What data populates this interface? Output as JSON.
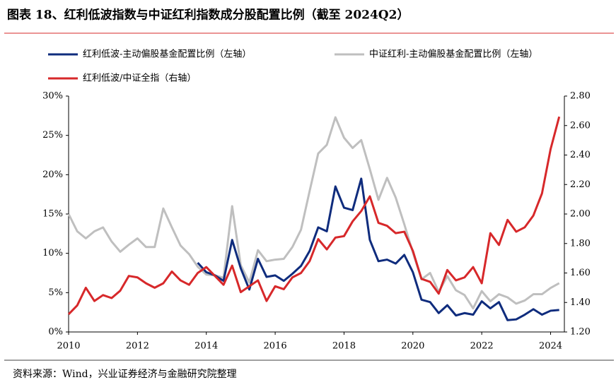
{
  "chart_data": {
    "type": "line",
    "title": "图表 18、红利低波指数与中证红利指数成分股配置比例（截至 2024Q2）",
    "source": "资料来源：Wind，兴业证券经济与金融研究院整理",
    "x": [
      2010,
      2010.25,
      2010.5,
      2010.75,
      2011,
      2011.25,
      2011.5,
      2011.75,
      2012,
      2012.25,
      2012.5,
      2012.75,
      2013,
      2013.25,
      2013.5,
      2013.75,
      2014,
      2014.25,
      2014.5,
      2014.75,
      2015,
      2015.25,
      2015.5,
      2015.75,
      2016,
      2016.25,
      2016.5,
      2016.75,
      2017,
      2017.25,
      2017.5,
      2017.75,
      2018,
      2018.25,
      2018.5,
      2018.75,
      2019,
      2019.25,
      2019.5,
      2019.75,
      2020,
      2020.25,
      2020.5,
      2020.75,
      2021,
      2021.25,
      2021.5,
      2021.75,
      2022,
      2022.25,
      2022.5,
      2022.75,
      2023,
      2023.25,
      2023.5,
      2023.75,
      2024,
      2024.25
    ],
    "xlim": [
      2010,
      2024.4
    ],
    "xticks": [
      2010,
      2012,
      2014,
      2016,
      2018,
      2020,
      2022,
      2024
    ],
    "ylim": [
      0,
      30
    ],
    "yticks": [
      {
        "value": 0,
        "label": "0%"
      },
      {
        "value": 5,
        "label": "5%"
      },
      {
        "value": 10,
        "label": "10%"
      },
      {
        "value": 15,
        "label": "15%"
      },
      {
        "value": 20,
        "label": "20%"
      },
      {
        "value": 25,
        "label": "25%"
      },
      {
        "value": 30,
        "label": "30%"
      }
    ],
    "y2lim": [
      1.2,
      2.8
    ],
    "y2ticks": [
      {
        "value": 1.2,
        "label": "1.20"
      },
      {
        "value": 1.4,
        "label": "1.40"
      },
      {
        "value": 1.6,
        "label": "1.60"
      },
      {
        "value": 1.8,
        "label": "1.80"
      },
      {
        "value": 2.0,
        "label": "2.00"
      },
      {
        "value": 2.2,
        "label": "2.20"
      },
      {
        "value": 2.4,
        "label": "2.40"
      },
      {
        "value": 2.6,
        "label": "2.60"
      },
      {
        "value": 2.8,
        "label": "2.80"
      }
    ],
    "grid": false,
    "series": [
      {
        "name": "红利低波-主动偏股基金配置比例（左轴）",
        "color": "#0f2c7d",
        "values": [
          null,
          null,
          null,
          null,
          null,
          null,
          null,
          null,
          null,
          null,
          null,
          null,
          null,
          null,
          null,
          8.8,
          7.6,
          7.2,
          6.5,
          11.7,
          8.1,
          5.4,
          9.3,
          7.0,
          7.2,
          6.5,
          7.4,
          8.4,
          10.3,
          13.3,
          12.8,
          18.5,
          15.8,
          15.5,
          19.5,
          11.7,
          9.0,
          9.2,
          8.7,
          9.8,
          7.6,
          4.1,
          3.8,
          2.4,
          3.4,
          2.1,
          2.4,
          2.2,
          3.9,
          3.0,
          3.8,
          1.5,
          1.6,
          2.2,
          2.9,
          2.2,
          2.7,
          2.8
        ]
      },
      {
        "name": "中证红利-主动偏股基金配置比例（左轴）",
        "color": "#bfbfbf",
        "values": [
          15.0,
          12.8,
          11.9,
          12.8,
          13.3,
          11.5,
          10.2,
          11.1,
          11.9,
          10.8,
          10.8,
          15.7,
          13.3,
          11.0,
          9.9,
          8.3,
          7.3,
          7.2,
          6.9,
          16.0,
          8.5,
          6.3,
          10.4,
          9.0,
          9.2,
          9.3,
          10.8,
          13.0,
          17.9,
          22.7,
          23.8,
          27.3,
          24.7,
          23.4,
          24.4,
          20.7,
          16.8,
          19.6,
          17.1,
          13.7,
          10.1,
          6.7,
          7.5,
          5.1,
          7.1,
          5.3,
          4.7,
          3.0,
          5.2,
          3.9,
          4.8,
          4.4,
          3.6,
          4.0,
          4.8,
          4.8,
          5.6,
          6.2
        ]
      },
      {
        "name": "红利低波/中证全指（右轴）",
        "color": "#d7282a",
        "axis": "y2",
        "values": [
          1.32,
          1.38,
          1.5,
          1.41,
          1.45,
          1.43,
          1.48,
          1.58,
          1.57,
          1.53,
          1.5,
          1.53,
          1.61,
          1.55,
          1.52,
          1.6,
          1.64,
          1.58,
          1.52,
          1.65,
          1.47,
          1.51,
          1.55,
          1.41,
          1.51,
          1.49,
          1.57,
          1.6,
          1.68,
          1.83,
          1.76,
          1.84,
          1.85,
          1.95,
          2.02,
          2.12,
          1.94,
          1.92,
          1.87,
          1.88,
          1.75,
          1.56,
          1.54,
          1.46,
          1.62,
          1.55,
          1.57,
          1.64,
          1.53,
          1.87,
          1.79,
          1.96,
          1.88,
          1.91,
          1.99,
          2.14,
          2.44,
          2.66
        ]
      }
    ]
  }
}
